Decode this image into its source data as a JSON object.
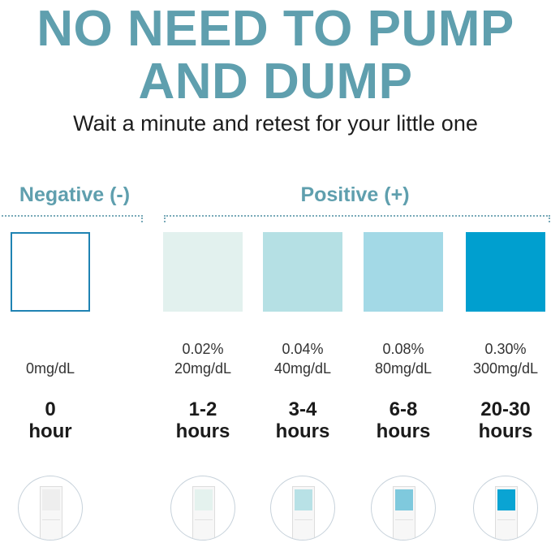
{
  "headline": {
    "line1": "NO NEED TO PUMP",
    "line2": "AND DUMP"
  },
  "subtitle": "Wait a minute and retest for your little one",
  "groups": {
    "negative": "Negative (-)",
    "positive": "Positive (+)"
  },
  "levels": [
    {
      "pct": "",
      "mg": "0mg/dL",
      "time_value": "0",
      "time_unit": "hour",
      "color": "#ffffff",
      "pad_color": "#eeeeee"
    },
    {
      "pct": "0.02%",
      "mg": "20mg/dL",
      "time_value": "1-2",
      "time_unit": "hours",
      "color": "#e2f1ee",
      "pad_color": "#e4f2ee"
    },
    {
      "pct": "0.04%",
      "mg": "40mg/dL",
      "time_value": "3-4",
      "time_unit": "hours",
      "color": "#b5e0e4",
      "pad_color": "#b8e1e6"
    },
    {
      "pct": "0.08%",
      "mg": "80mg/dL",
      "time_value": "6-8",
      "time_unit": "hours",
      "color": "#a3d9e6",
      "pad_color": "#7fc9dd"
    },
    {
      "pct": "0.30%",
      "mg": "300mg/dL",
      "time_value": "20-30",
      "time_unit": "hours",
      "color": "#009fcf",
      "pad_color": "#0aa4d3"
    }
  ]
}
